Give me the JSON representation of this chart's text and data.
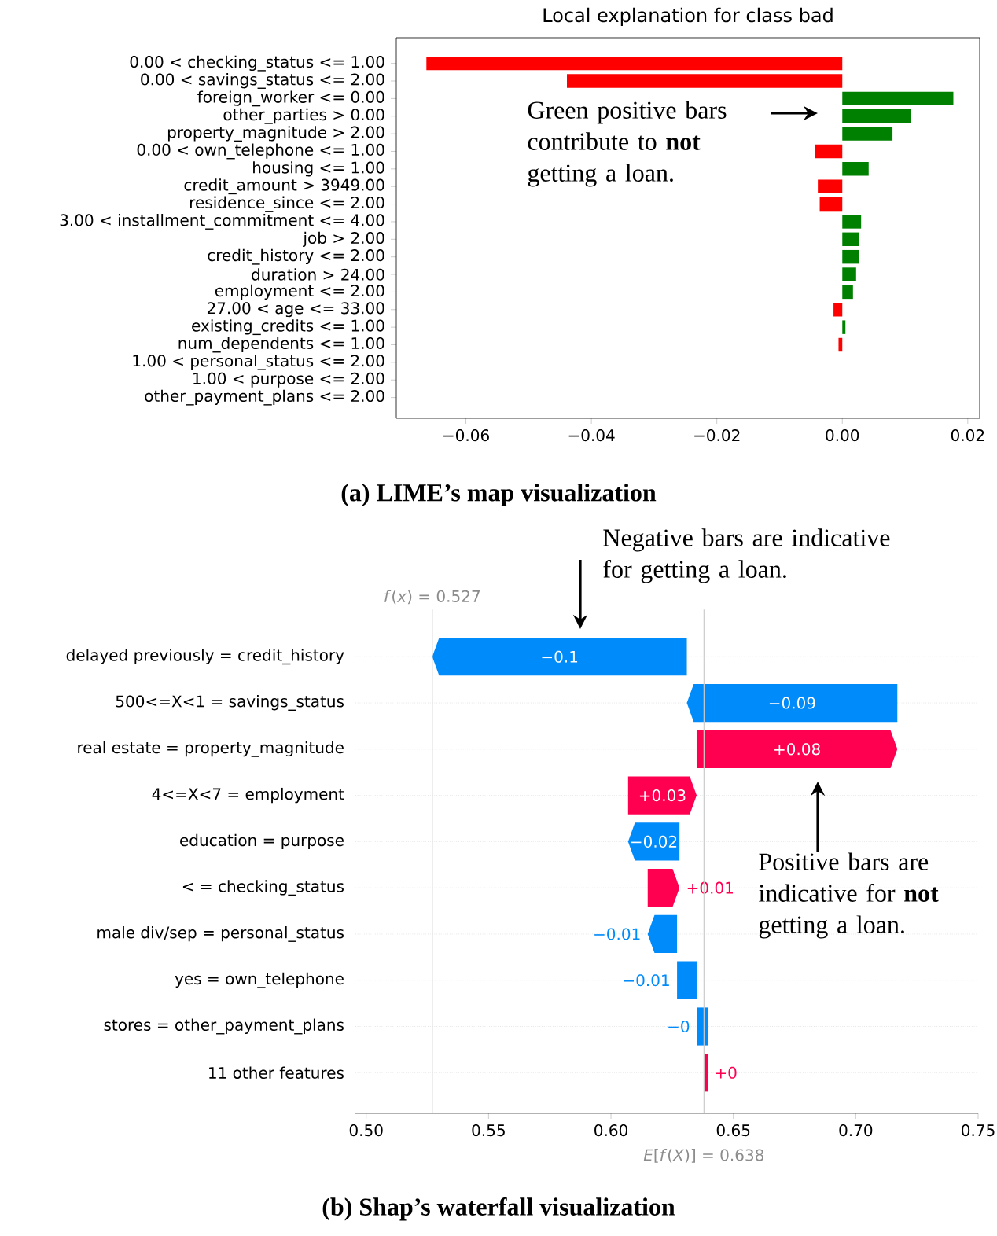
{
  "chart_data": [
    {
      "type": "bar",
      "orientation": "horizontal",
      "title": "Local explanation for class bad",
      "categories": [
        "0.00 < checking_status <= 1.00",
        "0.00 < savings_status <= 2.00",
        "foreign_worker <= 0.00",
        "other_parties > 0.00",
        "property_magnitude > 2.00",
        "0.00 < own_telephone <= 1.00",
        "housing <= 1.00",
        "credit_amount > 3949.00",
        "residence_since <= 2.00",
        "3.00 < installment_commitment <= 4.00",
        "job > 2.00",
        "credit_history <= 2.00",
        "duration > 24.00",
        "employment <= 2.00",
        "27.00 < age <= 33.00",
        "existing_credits <= 1.00",
        "num_dependents <= 1.00",
        "1.00 < personal_status <= 2.00",
        "1.00 < purpose <= 2.00",
        "other_payment_plans <= 2.00"
      ],
      "values": [
        -0.0663,
        -0.0439,
        0.0177,
        0.0109,
        0.008,
        -0.0044,
        0.0042,
        -0.0039,
        -0.0036,
        0.003,
        0.0027,
        0.0027,
        0.0022,
        0.0017,
        -0.0014,
        0.0005,
        -0.0006,
        0,
        0,
        0
      ],
      "colors": [
        "#ff0000",
        "#ff0000",
        "#008000",
        "#008000",
        "#008000",
        "#ff0000",
        "#008000",
        "#ff0000",
        "#ff0000",
        "#008000",
        "#008000",
        "#008000",
        "#008000",
        "#008000",
        "#ff0000",
        "#008000",
        "#ff0000",
        "#008000",
        "#008000",
        "#008000"
      ],
      "xlim": [
        -0.0711,
        0.0219
      ],
      "xticks": [
        {
          "value": -0.06,
          "label": "−0.06"
        },
        {
          "value": -0.04,
          "label": "−0.04"
        },
        {
          "value": -0.02,
          "label": "−0.02"
        },
        {
          "value": 0,
          "label": "0.00"
        },
        {
          "value": 0.02,
          "label": "0.02"
        }
      ],
      "annotations": [
        "Green positive bars contribute to **not** getting a loan.",
        "(a) LIME’s map visualization"
      ]
    },
    {
      "type": "bar",
      "orientation": "horizontal",
      "categories": [
        "delayed previously = credit_history",
        "500<=X<1 = savings_status",
        "real estate = property_magnitude",
        "4<=X<7 = employment",
        "education = purpose",
        "< = checking_status",
        "male div/sep = personal_status",
        "yes = own_telephone",
        "stores = other_payment_plans",
        "11 other features"
      ],
      "base": [
        0.631,
        0.717,
        0.635,
        0.607,
        0.628,
        0.615,
        0.627,
        0.635,
        0.6395,
        0.638
      ],
      "values": [
        -0.104,
        -0.086,
        0.082,
        0.028,
        -0.021,
        0.013,
        -0.012,
        -0.008,
        -0.0045,
        0.0015
      ],
      "colors": [
        "#008bfb",
        "#008bfb",
        "#ff0051",
        "#ff0051",
        "#008bfb",
        "#ff0051",
        "#008bfb",
        "#008bfb",
        "#008bfb",
        "#ff0051"
      ],
      "value_labels": [
        "−0.1",
        "−0.09",
        "+0.08",
        "+0.03",
        "−0.02",
        "+0.01",
        "−0.01",
        "−0.01",
        "−0",
        "+0"
      ],
      "xlim": [
        0.4956,
        0.75
      ],
      "xticks": [
        {
          "value": 0.5,
          "label": "0.50"
        },
        {
          "value": 0.55,
          "label": "0.55"
        },
        {
          "value": 0.6,
          "label": "0.60"
        },
        {
          "value": 0.65,
          "label": "0.65"
        },
        {
          "value": 0.7,
          "label": "0.70"
        },
        {
          "value": 0.75,
          "label": "0.75"
        }
      ],
      "grid": "y",
      "ref_lines": [
        {
          "axis": "x",
          "value": 0.527,
          "label": "*f*(*x*) = 0.527",
          "color": "#cccccc"
        },
        {
          "axis": "x",
          "value": 0.638,
          "label": "*E*[*f*(*X*)] = 0.638",
          "color": "#cccccc"
        }
      ],
      "annotations": [
        "Negative bars are indicative for getting a loan.",
        "Positive bars are indicative for **not** getting a loan.",
        "(b) Shap’s waterfall visualization"
      ]
    }
  ]
}
